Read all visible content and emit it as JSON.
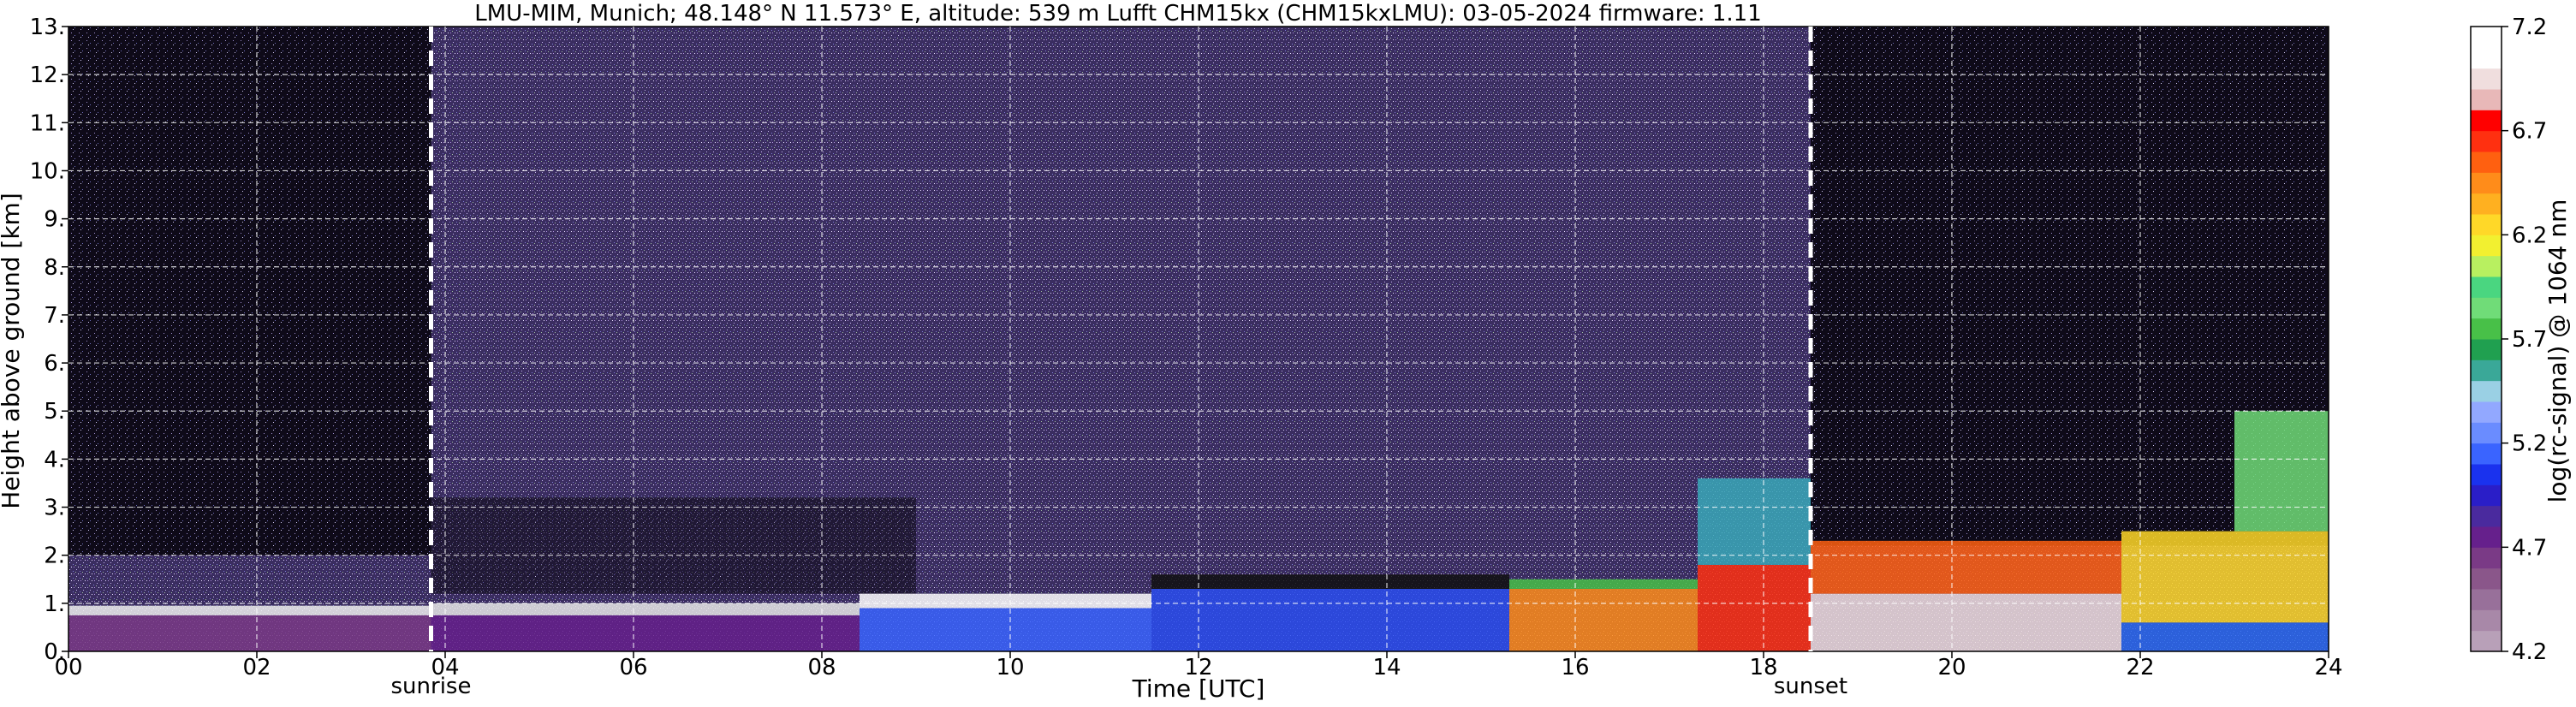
{
  "chart_data": {
    "type": "heatmap",
    "title": "LMU-MIM, Munich; 48.148° N 11.573° E, altitude: 539 m    Lufft CHM15kx (CHM15kxLMU): 03-05-2024    firmware: 1.11",
    "xlabel": "Time [UTC]",
    "ylabel": "Height above ground [km]",
    "xlim": [
      0,
      24
    ],
    "ylim": [
      0,
      13
    ],
    "x_ticks": [
      "00",
      "02",
      "04",
      "06",
      "08",
      "10",
      "12",
      "14",
      "16",
      "18",
      "20",
      "22",
      "24"
    ],
    "y_ticks": [
      "0.",
      "1.",
      "2.",
      "3.",
      "4.",
      "5.",
      "6.",
      "7.",
      "8.",
      "9.",
      "10.",
      "11.",
      "12.",
      "13."
    ],
    "grid": true,
    "markers": [
      {
        "label": "sunrise",
        "time_h": 3.85
      },
      {
        "label": "sunset",
        "time_h": 18.5
      }
    ],
    "colorbar": {
      "label": "log(rc-signal) @ 1064 nm",
      "range": [
        4.2,
        7.2
      ],
      "ticks": [
        "4.2",
        "4.7",
        "5.2",
        "5.7",
        "6.2",
        "6.7",
        "7.2"
      ],
      "colors": [
        "#b8a0b8",
        "#a888a8",
        "#98709a",
        "#8a568a",
        "#7a3a86",
        "#66208c",
        "#4a2a9e",
        "#2a1ec8",
        "#1a32ee",
        "#3a64ff",
        "#6a8cff",
        "#92a8ff",
        "#9ad0e4",
        "#3aa898",
        "#20a050",
        "#48c048",
        "#70dc78",
        "#4ad680",
        "#b8f060",
        "#f2f030",
        "#ffd828",
        "#ffb020",
        "#ff8c1a",
        "#ff6010",
        "#ff3010",
        "#ff0000",
        "#e8b8b8",
        "#f0dede",
        "#ffffff",
        "#ffffff"
      ]
    },
    "background_layers": [
      {
        "name": "boundary layer",
        "time_range_h": [
          0,
          24
        ],
        "top_km": [
          0.85,
          1.9
        ],
        "signal": "high"
      },
      {
        "name": "noise",
        "time_range_h": [
          0,
          24
        ],
        "height_km": [
          2,
          13
        ],
        "signal": "low"
      }
    ]
  }
}
